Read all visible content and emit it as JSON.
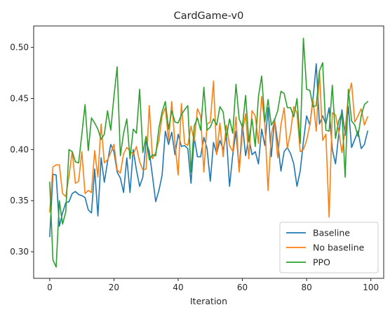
{
  "chart_data": {
    "type": "line",
    "title": "CardGame-v0",
    "xlabel": "Iteration",
    "ylabel": "",
    "xlim": [
      -5,
      104
    ],
    "ylim": [
      0.274,
      0.521
    ],
    "xticks": [
      "0",
      "20",
      "40",
      "60",
      "80",
      "100"
    ],
    "yticks": [
      "0.30",
      "0.35",
      "0.40",
      "0.45",
      "0.50"
    ],
    "grid": false,
    "legend_position": "lower-right",
    "series": [
      {
        "name": "Baseline",
        "color": "#1f77b4",
        "values": [
          0.315,
          0.376,
          0.375,
          0.325,
          0.338,
          0.348,
          0.349,
          0.357,
          0.359,
          0.356,
          0.355,
          0.353,
          0.341,
          0.338,
          0.381,
          0.335,
          0.392,
          0.368,
          0.388,
          0.405,
          0.398,
          0.378,
          0.372,
          0.358,
          0.392,
          0.358,
          0.4,
          0.38,
          0.364,
          0.373,
          0.408,
          0.398,
          0.374,
          0.349,
          0.36,
          0.375,
          0.418,
          0.405,
          0.417,
          0.395,
          0.415,
          0.403,
          0.404,
          0.401,
          0.367,
          0.412,
          0.393,
          0.393,
          0.412,
          0.401,
          0.369,
          0.407,
          0.396,
          0.409,
          0.4,
          0.414,
          0.364,
          0.395,
          0.418,
          0.38,
          0.425,
          0.394,
          0.412,
          0.395,
          0.398,
          0.386,
          0.42,
          0.404,
          0.441,
          0.393,
          0.43,
          0.407,
          0.379,
          0.398,
          0.402,
          0.396,
          0.386,
          0.364,
          0.379,
          0.408,
          0.433,
          0.424,
          0.45,
          0.484,
          0.425,
          0.433,
          0.425,
          0.441,
          0.4,
          0.386,
          0.415,
          0.439,
          0.414,
          0.442,
          0.402,
          0.41,
          0.418,
          0.401,
          0.405,
          0.418
        ]
      },
      {
        "name": "No baseline",
        "color": "#ff7f0e",
        "values": [
          0.339,
          0.383,
          0.385,
          0.385,
          0.357,
          0.354,
          0.374,
          0.398,
          0.367,
          0.369,
          0.398,
          0.357,
          0.36,
          0.358,
          0.399,
          0.373,
          0.425,
          0.387,
          0.39,
          0.397,
          0.405,
          0.38,
          0.377,
          0.396,
          0.402,
          0.399,
          0.395,
          0.403,
          0.388,
          0.38,
          0.381,
          0.443,
          0.391,
          0.397,
          0.409,
          0.433,
          0.441,
          0.409,
          0.447,
          0.406,
          0.375,
          0.445,
          0.406,
          0.404,
          0.423,
          0.408,
          0.44,
          0.433,
          0.378,
          0.425,
          0.427,
          0.467,
          0.395,
          0.426,
          0.393,
          0.424,
          0.404,
          0.398,
          0.432,
          0.378,
          0.417,
          0.435,
          0.391,
          0.438,
          0.433,
          0.406,
          0.452,
          0.424,
          0.36,
          0.415,
          0.429,
          0.392,
          0.424,
          0.441,
          0.401,
          0.417,
          0.442,
          0.436,
          0.398,
          0.4,
          0.409,
          0.424,
          0.449,
          0.418,
          0.477,
          0.409,
          0.415,
          0.334,
          0.436,
          0.434,
          0.418,
          0.397,
          0.42,
          0.453,
          0.465,
          0.427,
          0.433,
          0.44,
          0.424,
          0.432
        ]
      },
      {
        "name": "PPO",
        "color": "#2ca02c",
        "values": [
          0.368,
          0.292,
          0.285,
          0.35,
          0.327,
          0.339,
          0.4,
          0.398,
          0.388,
          0.387,
          0.415,
          0.444,
          0.399,
          0.431,
          0.426,
          0.42,
          0.41,
          0.415,
          0.438,
          0.419,
          0.452,
          0.481,
          0.394,
          0.416,
          0.43,
          0.391,
          0.42,
          0.416,
          0.459,
          0.397,
          0.413,
          0.39,
          0.395,
          0.394,
          0.421,
          0.437,
          0.447,
          0.42,
          0.438,
          0.427,
          0.426,
          0.434,
          0.439,
          0.443,
          0.378,
          0.423,
          0.431,
          0.419,
          0.461,
          0.419,
          0.422,
          0.43,
          0.424,
          0.442,
          0.437,
          0.412,
          0.43,
          0.416,
          0.464,
          0.43,
          0.422,
          0.453,
          0.408,
          0.43,
          0.403,
          0.452,
          0.472,
          0.427,
          0.449,
          0.424,
          0.429,
          0.438,
          0.457,
          0.455,
          0.441,
          0.441,
          0.432,
          0.45,
          0.406,
          0.509,
          0.459,
          0.458,
          0.442,
          0.443,
          0.477,
          0.485,
          0.419,
          0.418,
          0.463,
          0.411,
          0.428,
          0.436,
          0.373,
          0.459,
          0.428,
          0.424,
          0.413,
          0.433,
          0.444,
          0.447
        ]
      }
    ]
  }
}
